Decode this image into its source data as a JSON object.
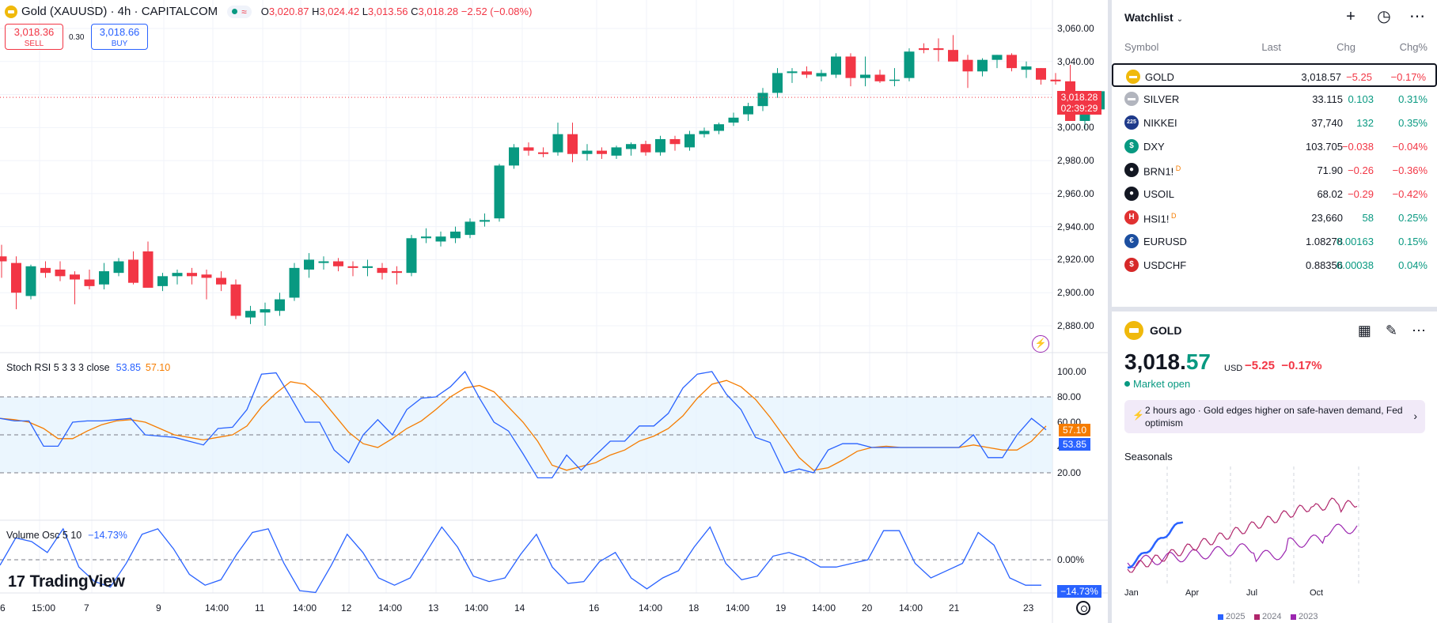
{
  "header": {
    "symbol_title": "Gold (XAUUSD) · 4h · CAPITALCOM",
    "ohlc": {
      "o_label": "O",
      "o": "3,020.87",
      "h_label": "H",
      "h": "3,024.42",
      "l_label": "L",
      "l": "3,013.56",
      "c_label": "C",
      "c": "3,018.28",
      "change": "−2.52 (−0.08%)"
    },
    "sell_price": "3,018.36",
    "sell_label": "SELL",
    "spread": "0.30",
    "buy_price": "3,018.66",
    "buy_label": "BUY"
  },
  "price_scale": [
    "3,060.00",
    "3,040.00",
    "3,020.00",
    "3,000.00",
    "2,980.00",
    "2,960.00",
    "2,940.00",
    "2,920.00",
    "2,900.00",
    "2,880.00"
  ],
  "current_price": {
    "value": "3,018.28",
    "countdown": "02:39:29"
  },
  "stoch": {
    "title": "Stoch RSI 5 3 3 3 close",
    "k": "53.85",
    "d": "57.10",
    "scale": [
      "100.00",
      "80.00",
      "60.00",
      "40.00",
      "20.00"
    ],
    "tag_d": "57.10",
    "tag_k": "53.85"
  },
  "volosc": {
    "title": "Volume Osc 5 10",
    "value": "−14.73%",
    "scale_zero": "0.00%",
    "tag": "−14.73%"
  },
  "branding": {
    "logo_mark": "17",
    "logo_text": "TradingView"
  },
  "time_axis": [
    {
      "t": "6",
      "x": 0
    },
    {
      "t": "15:00",
      "x": 40
    },
    {
      "t": "7",
      "x": 106
    },
    {
      "t": "9",
      "x": 197
    },
    {
      "t": "14:00",
      "x": 259
    },
    {
      "t": "11",
      "x": 322
    },
    {
      "t": "14:00",
      "x": 370
    },
    {
      "t": "12",
      "x": 431
    },
    {
      "t": "14:00",
      "x": 478
    },
    {
      "t": "13",
      "x": 541
    },
    {
      "t": "14:00",
      "x": 587
    },
    {
      "t": "14",
      "x": 650
    },
    {
      "t": "16",
      "x": 744
    },
    {
      "t": "14:00",
      "x": 807
    },
    {
      "t": "18",
      "x": 870
    },
    {
      "t": "14:00",
      "x": 917
    },
    {
      "t": "19",
      "x": 980
    },
    {
      "t": "14:00",
      "x": 1026
    },
    {
      "t": "20",
      "x": 1089
    },
    {
      "t": "14:00",
      "x": 1136
    },
    {
      "t": "21",
      "x": 1199
    },
    {
      "t": "23",
      "x": 1293
    }
  ],
  "candles": [
    [
      2922,
      2929,
      2909,
      2919
    ],
    [
      2918,
      2922,
      2890,
      2900
    ],
    [
      2898,
      2917,
      2896,
      2916
    ],
    [
      2915,
      2919,
      2909,
      2912
    ],
    [
      2914,
      2919,
      2907,
      2910
    ],
    [
      2911,
      2913,
      2893,
      2908
    ],
    [
      2908,
      2914,
      2902,
      2904
    ],
    [
      2905,
      2918,
      2902,
      2913
    ],
    [
      2912,
      2921,
      2910,
      2919
    ],
    [
      2920,
      2925,
      2905,
      2906
    ],
    [
      2925,
      2931,
      2903,
      2903
    ],
    [
      2904,
      2912,
      2901,
      2910
    ],
    [
      2910,
      2914,
      2905,
      2912
    ],
    [
      2912,
      2915,
      2905,
      2910
    ],
    [
      2911,
      2914,
      2896,
      2909
    ],
    [
      2909,
      2913,
      2901,
      2905
    ],
    [
      2905,
      2908,
      2884,
      2886
    ],
    [
      2885,
      2892,
      2881,
      2889
    ],
    [
      2888,
      2894,
      2880,
      2890
    ],
    [
      2889,
      2900,
      2886,
      2896
    ],
    [
      2897,
      2918,
      2895,
      2915
    ],
    [
      2914,
      2924,
      2909,
      2920
    ],
    [
      2918,
      2922,
      2914,
      2919
    ],
    [
      2919,
      2921,
      2913,
      2916
    ],
    [
      2916,
      2919,
      2910,
      2915
    ],
    [
      2915,
      2920,
      2910,
      2916
    ],
    [
      2915,
      2918,
      2908,
      2912
    ],
    [
      2913,
      2916,
      2905,
      2912
    ],
    [
      2912,
      2935,
      2910,
      2933
    ],
    [
      2933,
      2939,
      2930,
      2934
    ],
    [
      2931,
      2937,
      2928,
      2934
    ],
    [
      2933,
      2940,
      2930,
      2937
    ],
    [
      2935,
      2945,
      2933,
      2943
    ],
    [
      2943,
      2948,
      2940,
      2944
    ],
    [
      2945,
      2978,
      2943,
      2977
    ],
    [
      2977,
      2990,
      2975,
      2988
    ],
    [
      2988,
      2991,
      2983,
      2986
    ],
    [
      2985,
      2988,
      2982,
      2984
    ],
    [
      2985,
      3003,
      2983,
      2996
    ],
    [
      2996,
      3003,
      2979,
      2984
    ],
    [
      2984,
      2990,
      2980,
      2986
    ],
    [
      2986,
      2988,
      2981,
      2984
    ],
    [
      2983,
      2989,
      2981,
      2988
    ],
    [
      2987,
      2991,
      2983,
      2990
    ],
    [
      2990,
      2992,
      2983,
      2985
    ],
    [
      2985,
      2995,
      2983,
      2993
    ],
    [
      2993,
      2995,
      2986,
      2990
    ],
    [
      2988,
      2998,
      2986,
      2996
    ],
    [
      2996,
      3000,
      2994,
      2998
    ],
    [
      2998,
      3003,
      2996,
      3002
    ],
    [
      3003,
      3009,
      3001,
      3006
    ],
    [
      3008,
      3015,
      3004,
      3013
    ],
    [
      3013,
      3024,
      3010,
      3021
    ],
    [
      3021,
      3036,
      3018,
      3033
    ],
    [
      3033,
      3036,
      3027,
      3034
    ],
    [
      3034,
      3037,
      3030,
      3032
    ],
    [
      3031,
      3035,
      3028,
      3033
    ],
    [
      3032,
      3045,
      3030,
      3043
    ],
    [
      3043,
      3045,
      3025,
      3030
    ],
    [
      3030,
      3043,
      3025,
      3032
    ],
    [
      3032,
      3035,
      3027,
      3028
    ],
    [
      3029,
      3036,
      3025,
      3029
    ],
    [
      3030,
      3048,
      3028,
      3046
    ],
    [
      3048,
      3051,
      3045,
      3047
    ],
    [
      3048,
      3054,
      3040,
      3047
    ],
    [
      3047,
      3056,
      3040,
      3040
    ],
    [
      3041,
      3044,
      3024,
      3034
    ],
    [
      3034,
      3042,
      3031,
      3041
    ],
    [
      3041,
      3044,
      3036,
      3044
    ],
    [
      3044,
      3045,
      3034,
      3036
    ],
    [
      3035,
      3040,
      3030,
      3037
    ],
    [
      3036,
      3036,
      3026,
      3029
    ],
    [
      3029,
      3033,
      3026,
      3028
    ],
    [
      3028,
      3038,
      3005,
      3004
    ],
    [
      3004,
      3012,
      2999,
      3011
    ],
    [
      3011,
      3022,
      3008,
      3022
    ],
    [
      3022,
      3024,
      3018,
      3020
    ],
    [
      3021,
      3024,
      3014,
      3018
    ]
  ],
  "stoch_k": [
    63,
    61,
    61,
    41,
    41,
    60,
    61,
    61,
    62,
    63,
    50,
    49,
    48,
    45,
    42,
    55,
    56,
    70,
    98,
    99,
    80,
    60,
    60,
    38,
    28,
    50,
    62,
    50,
    70,
    79,
    80,
    88,
    100,
    79,
    60,
    53,
    35,
    16,
    16,
    34,
    22,
    34,
    45,
    45,
    57,
    57,
    67,
    87,
    98,
    100,
    82,
    70,
    48,
    44,
    20,
    23,
    20,
    38,
    43,
    43,
    40,
    40,
    40,
    40,
    40,
    40,
    40,
    50,
    32,
    32,
    50,
    63,
    54
  ],
  "stoch_d": [
    63,
    62,
    60,
    55,
    47,
    47,
    53,
    58,
    61,
    62,
    60,
    55,
    50,
    48,
    46,
    48,
    50,
    57,
    72,
    83,
    92,
    90,
    80,
    66,
    52,
    43,
    40,
    47,
    55,
    61,
    70,
    80,
    87,
    89,
    84,
    72,
    60,
    45,
    26,
    22,
    25,
    28,
    34,
    38,
    45,
    49,
    55,
    65,
    79,
    90,
    93,
    88,
    78,
    64,
    48,
    32,
    22,
    24,
    30,
    37,
    40,
    41,
    40,
    40,
    40,
    40,
    40,
    42,
    40,
    38,
    38,
    45,
    57
  ],
  "vol_osc": [
    -3,
    12,
    10,
    4,
    17,
    -4,
    -12,
    -15,
    -2,
    14,
    17,
    6,
    -8,
    -14,
    -11,
    3,
    15,
    17,
    -2,
    -17,
    -18,
    -3,
    14,
    4,
    -10,
    -14,
    -10,
    4,
    18,
    7,
    -9,
    -12,
    -10,
    3,
    14,
    -4,
    -13,
    -12,
    -1,
    4,
    -10,
    -16,
    -10,
    -6,
    7,
    18,
    -2,
    -11,
    -9,
    2,
    4,
    1,
    -4,
    -4,
    -2,
    0,
    16,
    16,
    -2,
    -10,
    -6,
    -2,
    15,
    8,
    -10,
    -14,
    -14
  ],
  "watchlist": {
    "title": "Watchlist",
    "columns": {
      "symbol": "Symbol",
      "last": "Last",
      "chg": "Chg",
      "chgp": "Chg%"
    },
    "rows": [
      {
        "sym": "GOLD",
        "last": "3,018.57",
        "chg": "−5.25",
        "chgp": "−0.17%",
        "dir": "neg",
        "icon": "gold-icon",
        "color": "#f0b90b",
        "glyph": "▬",
        "sup": ""
      },
      {
        "sym": "SILVER",
        "last": "33.115",
        "chg": "0.103",
        "chgp": "0.31%",
        "dir": "pos",
        "icon": "silver-icon",
        "color": "#b2b5be",
        "glyph": "▬",
        "sup": ""
      },
      {
        "sym": "NIKKEI",
        "last": "37,740",
        "chg": "132",
        "chgp": "0.35%",
        "dir": "pos",
        "icon": "nikkei-icon",
        "color": "#1e3a8a",
        "glyph": "225",
        "sup": ""
      },
      {
        "sym": "DXY",
        "last": "103.705",
        "chg": "−0.038",
        "chgp": "−0.04%",
        "dir": "neg",
        "icon": "dollar-icon",
        "color": "#089981",
        "glyph": "$",
        "sup": ""
      },
      {
        "sym": "BRN1!",
        "last": "71.90",
        "chg": "−0.26",
        "chgp": "−0.36%",
        "dir": "neg",
        "icon": "oil-drop-icon",
        "color": "#131722",
        "glyph": "●",
        "sup": "D"
      },
      {
        "sym": "USOIL",
        "last": "68.02",
        "chg": "−0.29",
        "chgp": "−0.42%",
        "dir": "neg",
        "icon": "oil-drop-icon",
        "color": "#131722",
        "glyph": "●",
        "sup": ""
      },
      {
        "sym": "HSI1!",
        "last": "23,660",
        "chg": "58",
        "chgp": "0.25%",
        "dir": "pos",
        "icon": "hsi-icon",
        "color": "#e03131",
        "glyph": "H",
        "sup": "D"
      },
      {
        "sym": "EURUSD",
        "last": "1.08278",
        "chg": "0.00163",
        "chgp": "0.15%",
        "dir": "pos",
        "icon": "eu-us-flag-icon",
        "color": "#1c4fa0",
        "glyph": "€",
        "sup": ""
      },
      {
        "sym": "USDCHF",
        "last": "0.88356",
        "chg": "0.00038",
        "chgp": "0.04%",
        "dir": "pos",
        "icon": "us-ch-flag-icon",
        "color": "#d62828",
        "glyph": "$",
        "sup": ""
      }
    ]
  },
  "details": {
    "symbol": "GOLD",
    "price_main": "3,018.",
    "price_tail": "57",
    "unit": "USD",
    "change": "−5.25",
    "change_pct": "−0.17%",
    "status": "Market open",
    "news": "2 hours ago · Gold edges higher on safe-haven demand, Fed optimism",
    "seasonals_title": "Seasonals",
    "months": [
      "Jan",
      "Apr",
      "Jul",
      "Oct"
    ],
    "legend": [
      {
        "year": "2025",
        "color": "#2962ff"
      },
      {
        "year": "2024",
        "color": "#b0266b"
      },
      {
        "year": "2023",
        "color": "#9c27b0"
      }
    ]
  },
  "colors": {
    "up": "#089981",
    "down": "#f23645",
    "stoch_k": "#2962ff",
    "stoch_d": "#f57c00",
    "band": "#e3f2fd"
  }
}
